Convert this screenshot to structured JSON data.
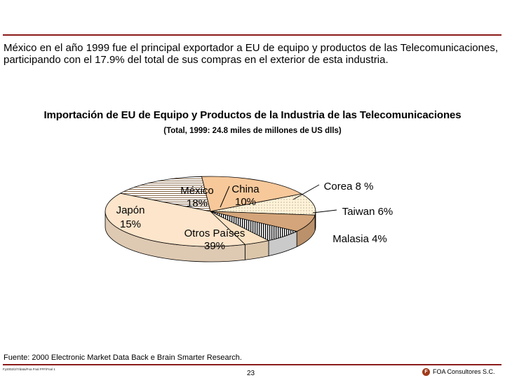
{
  "slide": {
    "intro": "México en el año 1999 fue el principal exportador a EU de equipo y productos de las Telecomunicaciones, participando con el 17.9% del total de sus compras en el exterior de esta industria.",
    "source": "Fuente: 2000 Electronic Market Data Back e Brain Smarter Research.",
    "footer_left": "Fy2002/2/7/data/Foa Fnal FFF/Fnal 1",
    "page_number": "23",
    "brand": "FOA Consultores S.C.",
    "brand_logo": "F"
  },
  "chart_data": {
    "type": "pie",
    "title": "Importación de EU de Equipo y Productos de la Industria de las Telecomunicaciones",
    "subtitle": "(Total, 1999: 24.8 miles de millones de US dlls)",
    "slices": [
      {
        "label": "México",
        "value_label": "18%",
        "value": 18,
        "color": "#f7c89a",
        "pattern": "solid"
      },
      {
        "label": "China",
        "value_label": "10%",
        "value": 10,
        "color": "#fff3d9",
        "pattern": "dots"
      },
      {
        "label": "Corea",
        "value_label": "8 %",
        "value": 8,
        "color": "#d4a57a",
        "pattern": "solid"
      },
      {
        "label": "Taiwan",
        "value_label": "6%",
        "value": 6,
        "color": "#ffffff",
        "pattern": "vertical-lines"
      },
      {
        "label": "Malasia",
        "value_label": "4%",
        "value": 4,
        "color": "#fbe2c2",
        "pattern": "solid"
      },
      {
        "label": "Otros Países",
        "value_label": "39%",
        "value": 39,
        "color": "#fde5cb",
        "pattern": "solid"
      },
      {
        "label": "Japón",
        "value_label": "15%",
        "value": 15,
        "color": "#ffffff",
        "pattern": "horizontal-lines"
      }
    ]
  }
}
